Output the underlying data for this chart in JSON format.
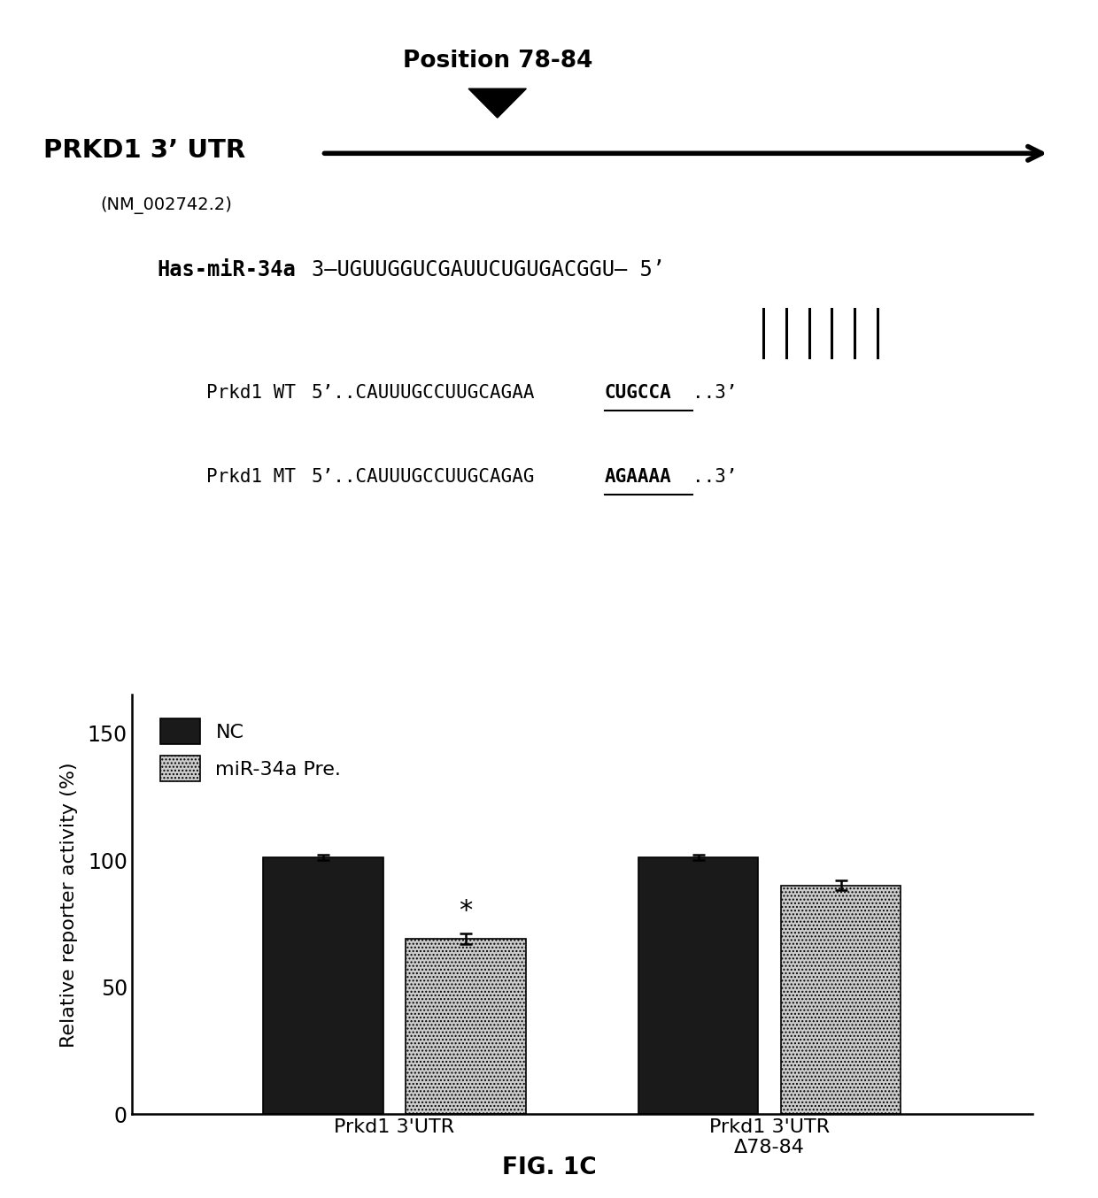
{
  "fig_width": 12.4,
  "fig_height": 13.54,
  "bg_color": "#ffffff",
  "top_section": {
    "position_label": "Position 78-84",
    "gene_label": "PRKD1 3’ UTR",
    "accession_label": "(NM_002742.2)",
    "mir_label": "Has-miR-34a",
    "mir_seq": "3–UGUUGGUCGAUUCUGUGACGGU– 5’",
    "wt_label": "Prkd1 WT",
    "wt_seq_pre": "5’..CAUUUGCCUUGCAGAA",
    "wt_seq_bold": "CUGCCA",
    "wt_seq_post": "..3’",
    "mt_label": "Prkd1 MT",
    "mt_seq_pre": "5’..CAUUUGCCUUGCAGAG",
    "mt_seq_bold": "AGAAAA",
    "mt_seq_post": "..3’"
  },
  "bar_data": {
    "group_labels": [
      "Prkd1 3'UTR",
      "Prkd1 3'UTR\nΔ78-84"
    ],
    "nc_values": [
      101,
      101
    ],
    "mir_values": [
      69,
      90
    ],
    "nc_errors": [
      1,
      1
    ],
    "mir_errors": [
      2,
      2
    ],
    "nc_color": "#1a1a1a",
    "ylabel": "Relative reporter activity (%)",
    "yticks": [
      0,
      50,
      100,
      150
    ],
    "ylim": [
      0,
      165
    ],
    "legend_nc": "NC",
    "legend_mir": "miR-34a Pre.",
    "star_annotation": "*",
    "fig_label": "FIG. 1C"
  }
}
